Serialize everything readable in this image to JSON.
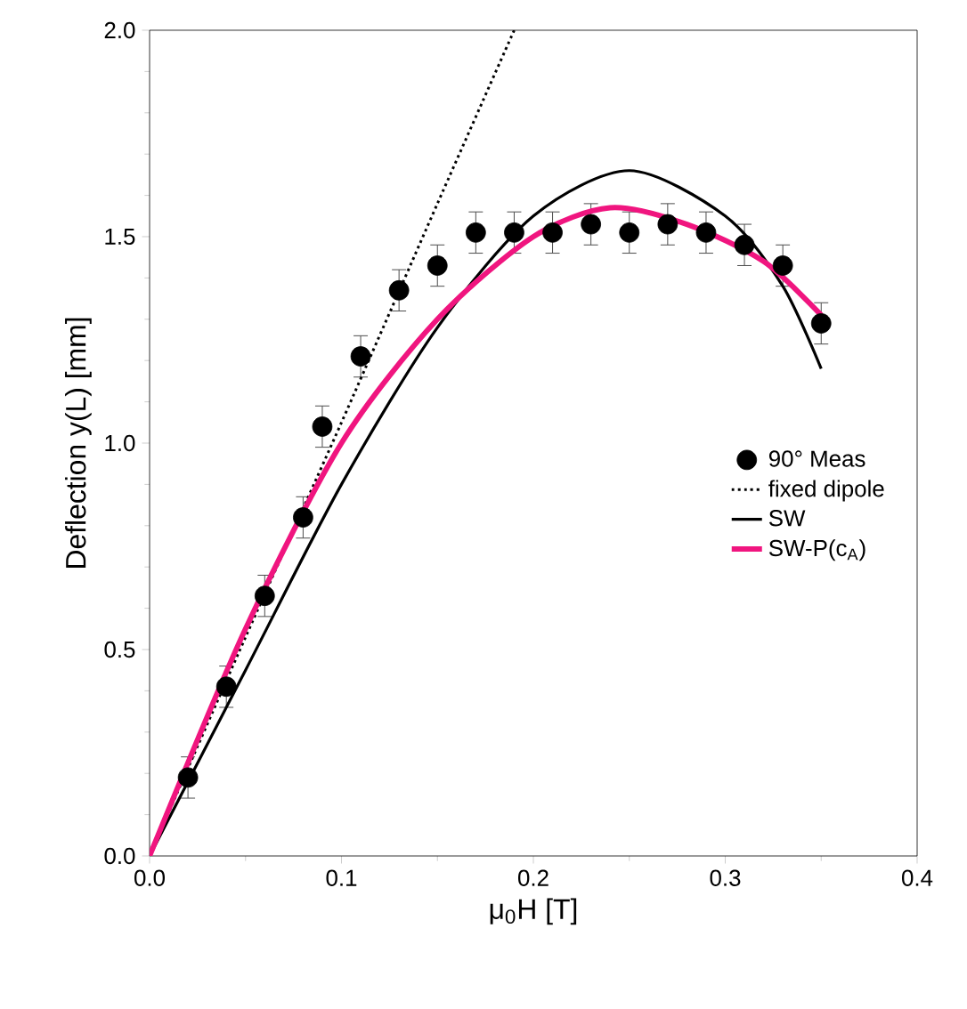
{
  "chart_data": {
    "type": "line",
    "xlabel": "μ$_{0}$H [T]",
    "ylabel": "Deflection y(L) [mm]",
    "xlim": [
      0,
      0.4
    ],
    "ylim": [
      0,
      2.0
    ],
    "xticks": [
      {
        "value": 0,
        "label": "0.0"
      },
      {
        "value": 0.1,
        "label": "0.1"
      },
      {
        "value": 0.2,
        "label": "0.2"
      },
      {
        "value": 0.3,
        "label": "0.3"
      },
      {
        "value": 0.4,
        "label": "0.4"
      }
    ],
    "yticks": [
      {
        "value": 0,
        "label": "0.0"
      },
      {
        "value": 0.5,
        "label": "0.5"
      },
      {
        "value": 1.0,
        "label": "1.0"
      },
      {
        "value": 1.5,
        "label": "1.5"
      },
      {
        "value": 2.0,
        "label": "2.0"
      }
    ],
    "legend": "right",
    "series": [
      {
        "name": "90° Meas",
        "type": "scatter",
        "marker": "circle",
        "color": "#000000",
        "x": [
          0.02,
          0.04,
          0.06,
          0.08,
          0.09,
          0.11,
          0.13,
          0.15,
          0.17,
          0.19,
          0.21,
          0.23,
          0.25,
          0.27,
          0.29,
          0.31,
          0.33,
          0.35
        ],
        "values": [
          0.19,
          0.41,
          0.63,
          0.82,
          1.04,
          1.21,
          1.37,
          1.43,
          1.51,
          1.51,
          1.51,
          1.53,
          1.51,
          1.53,
          1.51,
          1.48,
          1.43,
          1.29
        ],
        "errors": [
          0.05,
          0.05,
          0.05,
          0.05,
          0.05,
          0.05,
          0.05,
          0.05,
          0.05,
          0.05,
          0.05,
          0.05,
          0.05,
          0.05,
          0.05,
          0.05,
          0.05,
          0.05
        ]
      },
      {
        "name": "fixed dipole",
        "line_style": "dotted",
        "color": "#000000",
        "x": [
          0,
          0.05,
          0.1,
          0.15,
          0.19
        ],
        "values": [
          0,
          0.53,
          1.05,
          1.58,
          2.0
        ]
      },
      {
        "name": "SW",
        "line_style": "solid",
        "color": "#000000",
        "x": [
          0,
          0.05,
          0.1,
          0.15,
          0.2,
          0.25,
          0.3,
          0.33,
          0.35
        ],
        "values": [
          0,
          0.45,
          0.9,
          1.28,
          1.55,
          1.66,
          1.55,
          1.38,
          1.18
        ]
      },
      {
        "name": "SW-P(c$_{A}$)",
        "line_style": "solid",
        "color": "#f0157f",
        "x": [
          0,
          0.05,
          0.1,
          0.15,
          0.2,
          0.24,
          0.28,
          0.32,
          0.35
        ],
        "values": [
          0,
          0.55,
          1.0,
          1.3,
          1.5,
          1.57,
          1.53,
          1.44,
          1.31
        ]
      }
    ]
  }
}
